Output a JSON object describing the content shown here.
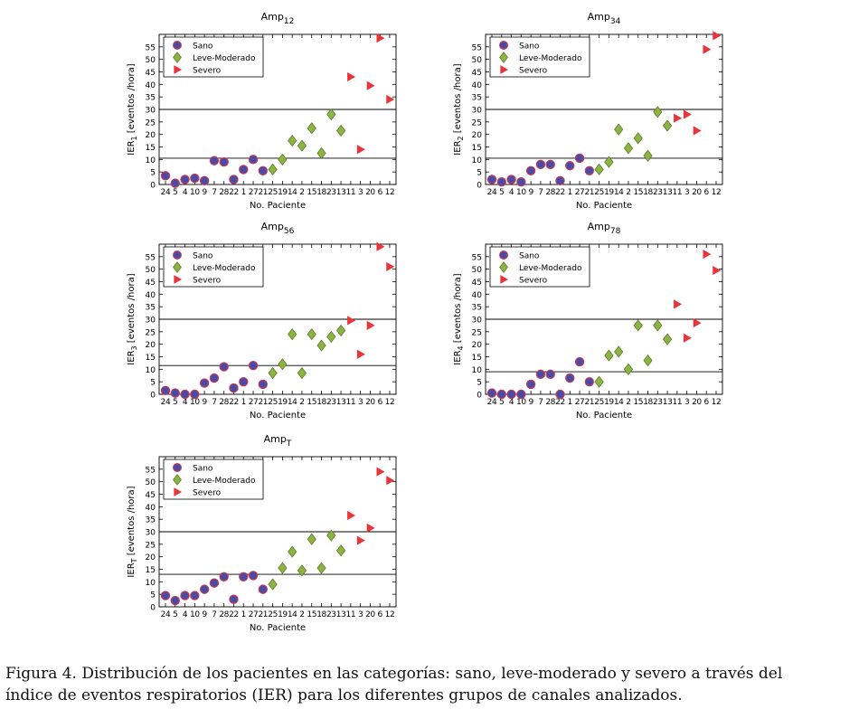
{
  "colors": {
    "sano_fill": "#4b4aa8",
    "sano_edge": "#c03e52",
    "leve_fill": "#8cb442",
    "leve_edge": "#5d7a2a",
    "severo_fill": "#e8343a",
    "line": "#000000"
  },
  "caption": {
    "line1": "Figura 4. Distribución de los pacientes en las categorías: sano, leve-moderado y severo a través del",
    "line2": "índice de eventos respiratorios (IER) para los diferentes grupos de canales analizados."
  },
  "chart_data": [
    {
      "type": "scatter",
      "title": "Amp",
      "title_sub": "12",
      "ylabel": "IER",
      "ylabel_sub": "1",
      "ylabel_rest": " [eventos /hora]",
      "xlabel": "No. Paciente",
      "ylim": [
        0,
        60
      ],
      "yticks": [
        0,
        5,
        10,
        15,
        20,
        25,
        30,
        35,
        40,
        45,
        50,
        55
      ],
      "xticks": [
        "24",
        "5",
        "4",
        "10",
        "9",
        "7",
        "28",
        "22",
        "1",
        "27",
        "21",
        "25",
        "19",
        "14",
        "2",
        "15",
        "18",
        "23",
        "13",
        "11",
        "3",
        "20",
        "6",
        "12"
      ],
      "hlines": [
        10.5,
        30
      ],
      "legend": [
        "Sano",
        "Leve-Moderado",
        "Severo"
      ],
      "series": [
        {
          "name": "Sano",
          "x": [
            1,
            2,
            3,
            4,
            5,
            6,
            7,
            8,
            9,
            10,
            11
          ],
          "y": [
            3.5,
            0.5,
            2,
            2.5,
            1.5,
            9.5,
            9,
            2,
            6,
            10,
            5.5
          ]
        },
        {
          "name": "Leve-Moderado",
          "x": [
            12,
            13,
            14,
            15,
            16,
            17,
            18,
            19
          ],
          "y": [
            6,
            10,
            17.5,
            15.5,
            22.5,
            12.5,
            28,
            21.5
          ]
        },
        {
          "name": "Severo",
          "x": [
            20,
            21,
            22,
            23,
            24
          ],
          "y": [
            43,
            14,
            39.5,
            58.5,
            34
          ]
        }
      ]
    },
    {
      "type": "scatter",
      "title": "Amp",
      "title_sub": "34",
      "ylabel": "IER",
      "ylabel_sub": "2",
      "ylabel_rest": " [eventos /hora]",
      "xlabel": "No. Paciente",
      "ylim": [
        0,
        60
      ],
      "yticks": [
        0,
        5,
        10,
        15,
        20,
        25,
        30,
        35,
        40,
        45,
        50,
        55
      ],
      "xticks": [
        "24",
        "5",
        "4",
        "10",
        "9",
        "7",
        "28",
        "22",
        "1",
        "27",
        "21",
        "25",
        "19",
        "14",
        "2",
        "15",
        "18",
        "23",
        "13",
        "11",
        "3",
        "20",
        "6",
        "12"
      ],
      "hlines": [
        10.5,
        30
      ],
      "legend": [
        "Sano",
        "Leve-Moderado",
        "Severo"
      ],
      "series": [
        {
          "name": "Sano",
          "x": [
            1,
            2,
            3,
            4,
            5,
            6,
            7,
            8,
            9,
            10,
            11
          ],
          "y": [
            2,
            1,
            2,
            1,
            5.5,
            8,
            8,
            1.5,
            7.5,
            10.5,
            5.5
          ]
        },
        {
          "name": "Leve-Moderado",
          "x": [
            12,
            13,
            14,
            15,
            16,
            17,
            18,
            19
          ],
          "y": [
            6,
            9,
            22,
            14.5,
            18.5,
            11.5,
            29,
            23.5
          ]
        },
        {
          "name": "Severo",
          "x": [
            20,
            21,
            22,
            23,
            24
          ],
          "y": [
            26.5,
            28,
            21.5,
            54,
            59.5
          ]
        }
      ]
    },
    {
      "type": "scatter",
      "title": "Amp",
      "title_sub": "56",
      "ylabel": "IER",
      "ylabel_sub": "3",
      "ylabel_rest": " [eventos /hora]",
      "xlabel": "No. Paciente",
      "ylim": [
        0,
        60
      ],
      "yticks": [
        0,
        5,
        10,
        15,
        20,
        25,
        30,
        35,
        40,
        45,
        50,
        55
      ],
      "xticks": [
        "24",
        "5",
        "4",
        "10",
        "9",
        "7",
        "28",
        "22",
        "1",
        "27",
        "21",
        "25",
        "19",
        "14",
        "2",
        "15",
        "18",
        "23",
        "13",
        "11",
        "3",
        "20",
        "6",
        "12"
      ],
      "hlines": [
        11.5,
        30
      ],
      "legend": [
        "Sano",
        "Leve-Moderado",
        "Severo"
      ],
      "series": [
        {
          "name": "Sano",
          "x": [
            1,
            2,
            3,
            4,
            5,
            6,
            7,
            8,
            9,
            10,
            11
          ],
          "y": [
            1.5,
            0.5,
            0,
            0,
            4.5,
            6.5,
            11,
            2.5,
            5,
            11.5,
            4
          ]
        },
        {
          "name": "Leve-Moderado",
          "x": [
            12,
            13,
            14,
            15,
            16,
            17,
            18,
            19
          ],
          "y": [
            8.5,
            12,
            24,
            8.5,
            24,
            19.5,
            23,
            25.5
          ]
        },
        {
          "name": "Severo",
          "x": [
            20,
            21,
            22,
            23,
            24
          ],
          "y": [
            29.5,
            16,
            27.5,
            59,
            51
          ]
        }
      ]
    },
    {
      "type": "scatter",
      "title": "Amp",
      "title_sub": "78",
      "ylabel": "IER",
      "ylabel_sub": "4",
      "ylabel_rest": " [eventos /hora]",
      "xlabel": "No. Paciente",
      "ylim": [
        0,
        60
      ],
      "yticks": [
        0,
        5,
        10,
        15,
        20,
        25,
        30,
        35,
        40,
        45,
        50,
        55
      ],
      "xticks": [
        "24",
        "5",
        "4",
        "10",
        "9",
        "7",
        "28",
        "22",
        "1",
        "27",
        "21",
        "25",
        "19",
        "14",
        "2",
        "15",
        "18",
        "23",
        "13",
        "11",
        "3",
        "20",
        "6",
        "12"
      ],
      "hlines": [
        9,
        30
      ],
      "legend": [
        "Sano",
        "Leve-Moderado",
        "Severo"
      ],
      "series": [
        {
          "name": "Sano",
          "x": [
            1,
            2,
            3,
            4,
            5,
            6,
            7,
            8,
            9,
            10,
            11
          ],
          "y": [
            0.5,
            0,
            0,
            0,
            4,
            8,
            8,
            0,
            6.5,
            13,
            5
          ]
        },
        {
          "name": "Leve-Moderado",
          "x": [
            12,
            13,
            14,
            15,
            16,
            17,
            18,
            19
          ],
          "y": [
            5,
            15.5,
            17,
            10,
            27.5,
            13.5,
            27.5,
            22
          ]
        },
        {
          "name": "Severo",
          "x": [
            20,
            21,
            22,
            23,
            24
          ],
          "y": [
            36,
            22.5,
            28.5,
            56,
            49.5
          ]
        }
      ]
    },
    {
      "type": "scatter",
      "title": "Amp",
      "title_sub": "T",
      "ylabel": "IER",
      "ylabel_sub": "T",
      "ylabel_rest": " [eventos /hora]",
      "xlabel": "No. Paciente",
      "ylim": [
        0,
        60
      ],
      "yticks": [
        0,
        5,
        10,
        15,
        20,
        25,
        30,
        35,
        40,
        45,
        50,
        55
      ],
      "xticks": [
        "24",
        "5",
        "4",
        "10",
        "9",
        "7",
        "28",
        "22",
        "1",
        "27",
        "21",
        "25",
        "19",
        "14",
        "2",
        "15",
        "18",
        "23",
        "13",
        "11",
        "3",
        "20",
        "6",
        "12"
      ],
      "hlines": [
        13,
        30
      ],
      "legend": [
        "Sano",
        "Leve-Moderado",
        "Severo"
      ],
      "series": [
        {
          "name": "Sano",
          "x": [
            1,
            2,
            3,
            4,
            5,
            6,
            7,
            8,
            9,
            10,
            11
          ],
          "y": [
            4.5,
            2.5,
            4.5,
            4.5,
            7,
            9.5,
            12,
            3,
            12,
            12.5,
            7
          ]
        },
        {
          "name": "Leve-Moderado",
          "x": [
            12,
            13,
            14,
            15,
            16,
            17,
            18,
            19
          ],
          "y": [
            9,
            15.5,
            22,
            14.5,
            27,
            15.5,
            28.5,
            22.5
          ]
        },
        {
          "name": "Severo",
          "x": [
            20,
            21,
            22,
            23,
            24
          ],
          "y": [
            36.5,
            26.5,
            31.5,
            54,
            50.5
          ]
        }
      ]
    }
  ]
}
